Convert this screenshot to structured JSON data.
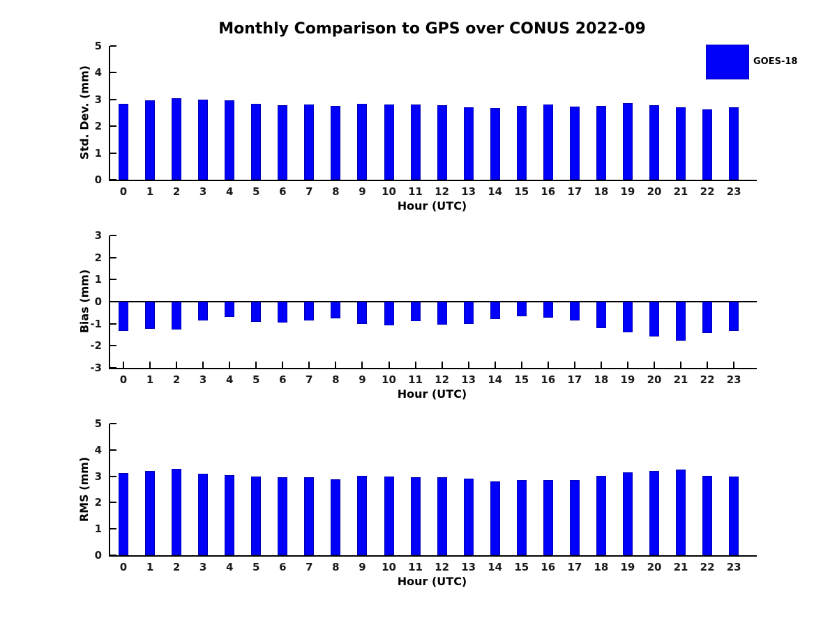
{
  "title": "Monthly Comparison to GPS over CONUS 2022-09",
  "legend": {
    "label": "GOES-18",
    "position": "upper right outside"
  },
  "colors": {
    "bar_fill": "#0101fa",
    "bar_edge": "#0000b4",
    "axis": "#000000",
    "tick_text": "#1a1a1a",
    "background": "#ffffff"
  },
  "chart_data": [
    {
      "type": "bar",
      "title": "",
      "ylabel": "Std. Dev. (mm)",
      "xlabel": "Hour (UTC)",
      "categories": [
        "0",
        "1",
        "2",
        "3",
        "4",
        "5",
        "6",
        "7",
        "8",
        "9",
        "10",
        "11",
        "12",
        "13",
        "14",
        "15",
        "16",
        "17",
        "18",
        "19",
        "20",
        "21",
        "22",
        "23"
      ],
      "series": [
        {
          "name": "GOES-18",
          "values": [
            2.83,
            2.96,
            3.04,
            2.99,
            2.96,
            2.84,
            2.78,
            2.81,
            2.77,
            2.83,
            2.8,
            2.8,
            2.78,
            2.7,
            2.69,
            2.77,
            2.81,
            2.73,
            2.76,
            2.86,
            2.78,
            2.72,
            2.64,
            2.7
          ]
        }
      ],
      "ylim": [
        0,
        5
      ],
      "yticks": [
        0,
        1,
        2,
        3,
        4,
        5
      ],
      "grid": false
    },
    {
      "type": "bar",
      "title": "",
      "ylabel": "Bias (mm)",
      "xlabel": "Hour (UTC)",
      "categories": [
        "0",
        "1",
        "2",
        "3",
        "4",
        "5",
        "6",
        "7",
        "8",
        "9",
        "10",
        "11",
        "12",
        "13",
        "14",
        "15",
        "16",
        "17",
        "18",
        "19",
        "20",
        "21",
        "22",
        "23"
      ],
      "series": [
        {
          "name": "GOES-18",
          "values": [
            -1.32,
            -1.22,
            -1.27,
            -0.85,
            -0.69,
            -0.93,
            -0.96,
            -0.84,
            -0.76,
            -1.02,
            -1.06,
            -0.88,
            -1.03,
            -1.02,
            -0.79,
            -0.66,
            -0.72,
            -0.86,
            -1.21,
            -1.38,
            -1.57,
            -1.78,
            -1.42,
            -1.34
          ]
        }
      ],
      "ylim": [
        -3,
        3
      ],
      "yticks": [
        -3,
        -2,
        -1,
        0,
        1,
        2,
        3
      ],
      "grid": false
    },
    {
      "type": "bar",
      "title": "",
      "ylabel": "RMS (mm)",
      "xlabel": "Hour (UTC)",
      "categories": [
        "0",
        "1",
        "2",
        "3",
        "4",
        "5",
        "6",
        "7",
        "8",
        "9",
        "10",
        "11",
        "12",
        "13",
        "14",
        "15",
        "16",
        "17",
        "18",
        "19",
        "20",
        "21",
        "22",
        "23"
      ],
      "series": [
        {
          "name": "GOES-18",
          "values": [
            3.12,
            3.2,
            3.27,
            3.1,
            3.05,
            3.0,
            2.95,
            2.95,
            2.89,
            3.02,
            3.0,
            2.95,
            2.96,
            2.9,
            2.81,
            2.86,
            2.86,
            2.86,
            3.02,
            3.15,
            3.21,
            3.26,
            3.02,
            2.99
          ]
        }
      ],
      "ylim": [
        0,
        5
      ],
      "yticks": [
        0,
        1,
        2,
        3,
        4,
        5
      ],
      "grid": false
    }
  ]
}
